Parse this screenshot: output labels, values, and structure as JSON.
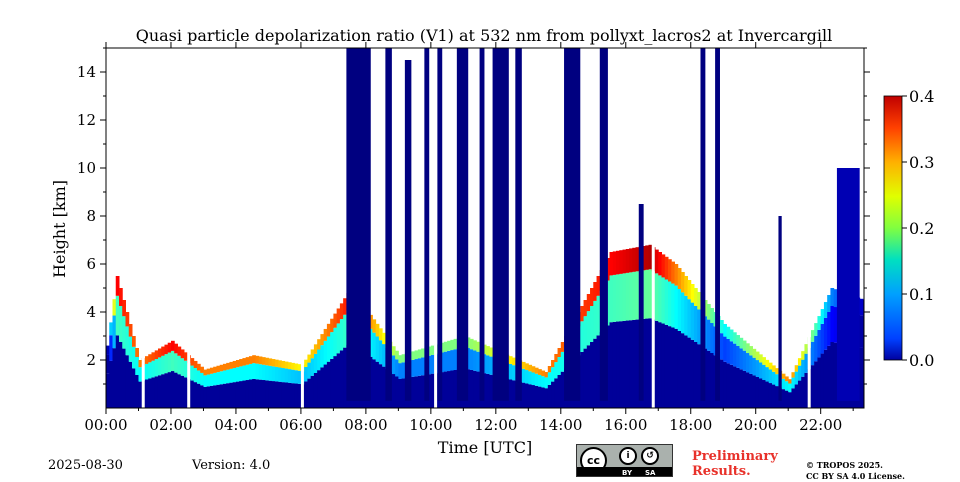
{
  "chart_data": {
    "type": "heatmap",
    "title": "Quasi particle depolarization ratio (V1) at 532 nm from pollyxt_lacros2 at Invercargill",
    "xlabel": "Time [UTC]",
    "ylabel": "Height [km]",
    "xlim": [
      "00:00",
      "23:20"
    ],
    "ylim": [
      0,
      15
    ],
    "x_ticks": [
      "00:00",
      "02:00",
      "04:00",
      "06:00",
      "08:00",
      "10:00",
      "12:00",
      "14:00",
      "16:00",
      "18:00",
      "20:00",
      "22:00"
    ],
    "y_ticks": [
      2,
      4,
      6,
      8,
      10,
      12,
      14
    ],
    "colorbar": {
      "min": 0.0,
      "max": 0.4,
      "ticks": [
        "0.0",
        "0.1",
        "0.2",
        "0.3",
        "0.4"
      ],
      "colormap": "jet"
    },
    "low_level_layer": [
      {
        "t": 0.0,
        "top_km": 2.6,
        "value": 0.02
      },
      {
        "t": 0.3,
        "top_km": 5.5,
        "value": 0.35
      },
      {
        "t": 1.0,
        "top_km": 2.0,
        "value": 0.3
      },
      {
        "t": 2.0,
        "top_km": 2.8,
        "value": 0.35
      },
      {
        "t": 3.0,
        "top_km": 1.6,
        "value": 0.3
      },
      {
        "t": 4.5,
        "top_km": 2.2,
        "value": 0.3
      },
      {
        "t": 6.0,
        "top_km": 1.8,
        "value": 0.25
      },
      {
        "t": 7.5,
        "top_km": 5.0,
        "value": 0.35
      },
      {
        "t": 9.0,
        "top_km": 2.2,
        "value": 0.2
      },
      {
        "t": 11.0,
        "top_km": 3.0,
        "value": 0.2
      },
      {
        "t": 13.5,
        "top_km": 1.5,
        "value": 0.3
      },
      {
        "t": 15.5,
        "top_km": 6.5,
        "value": 0.35
      },
      {
        "t": 16.7,
        "top_km": 6.8,
        "value": 0.38
      },
      {
        "t": 17.5,
        "top_km": 6.0,
        "value": 0.3
      },
      {
        "t": 19.0,
        "top_km": 3.5,
        "value": 0.15
      },
      {
        "t": 21.0,
        "top_km": 1.2,
        "value": 0.3
      },
      {
        "t": 22.3,
        "top_km": 5.0,
        "value": 0.1
      },
      {
        "t": 23.3,
        "top_km": 4.5,
        "value": 0.02
      }
    ],
    "cloud_columns": [
      {
        "t_start": 7.4,
        "t_end": 8.15,
        "top_km": 15.0,
        "value": 0.0
      },
      {
        "t_start": 8.6,
        "t_end": 8.8,
        "top_km": 15.0,
        "value": 0.0
      },
      {
        "t_start": 9.2,
        "t_end": 9.4,
        "top_km": 14.5,
        "value": 0.0
      },
      {
        "t_start": 9.8,
        "t_end": 9.95,
        "top_km": 15.0,
        "value": 0.0
      },
      {
        "t_start": 10.2,
        "t_end": 10.35,
        "top_km": 15.0,
        "value": 0.0
      },
      {
        "t_start": 10.8,
        "t_end": 11.15,
        "top_km": 15.0,
        "value": 0.0
      },
      {
        "t_start": 11.5,
        "t_end": 11.65,
        "top_km": 15.0,
        "value": 0.0
      },
      {
        "t_start": 11.9,
        "t_end": 12.4,
        "top_km": 15.0,
        "value": 0.0
      },
      {
        "t_start": 12.6,
        "t_end": 12.8,
        "top_km": 15.0,
        "value": 0.0
      },
      {
        "t_start": 14.1,
        "t_end": 14.6,
        "top_km": 15.0,
        "value": 0.0
      },
      {
        "t_start": 15.2,
        "t_end": 15.45,
        "top_km": 15.0,
        "value": 0.0
      },
      {
        "t_start": 16.4,
        "t_end": 16.55,
        "top_km": 8.5,
        "value": 0.0
      },
      {
        "t_start": 18.3,
        "t_end": 18.45,
        "top_km": 15.0,
        "value": 0.0
      },
      {
        "t_start": 18.75,
        "t_end": 18.9,
        "top_km": 15.0,
        "value": 0.0
      },
      {
        "t_start": 20.7,
        "t_end": 20.8,
        "top_km": 8.0,
        "value": 0.0
      },
      {
        "t_start": 22.5,
        "t_end": 23.2,
        "top_km": 10.0,
        "value": 0.02
      }
    ],
    "data_gaps": [
      1.1,
      2.5,
      6.0,
      10.1,
      16.8,
      21.6
    ]
  },
  "footer": {
    "date": "2025-08-30",
    "version": "Version: 4.0",
    "cc_by": "BY",
    "cc_sa": "SA",
    "preliminary_line1": "Preliminary",
    "preliminary_line2": "Results.",
    "copyright_line1": "© TROPOS 2025.",
    "copyright_line2": "CC BY SA 4.0 License."
  }
}
